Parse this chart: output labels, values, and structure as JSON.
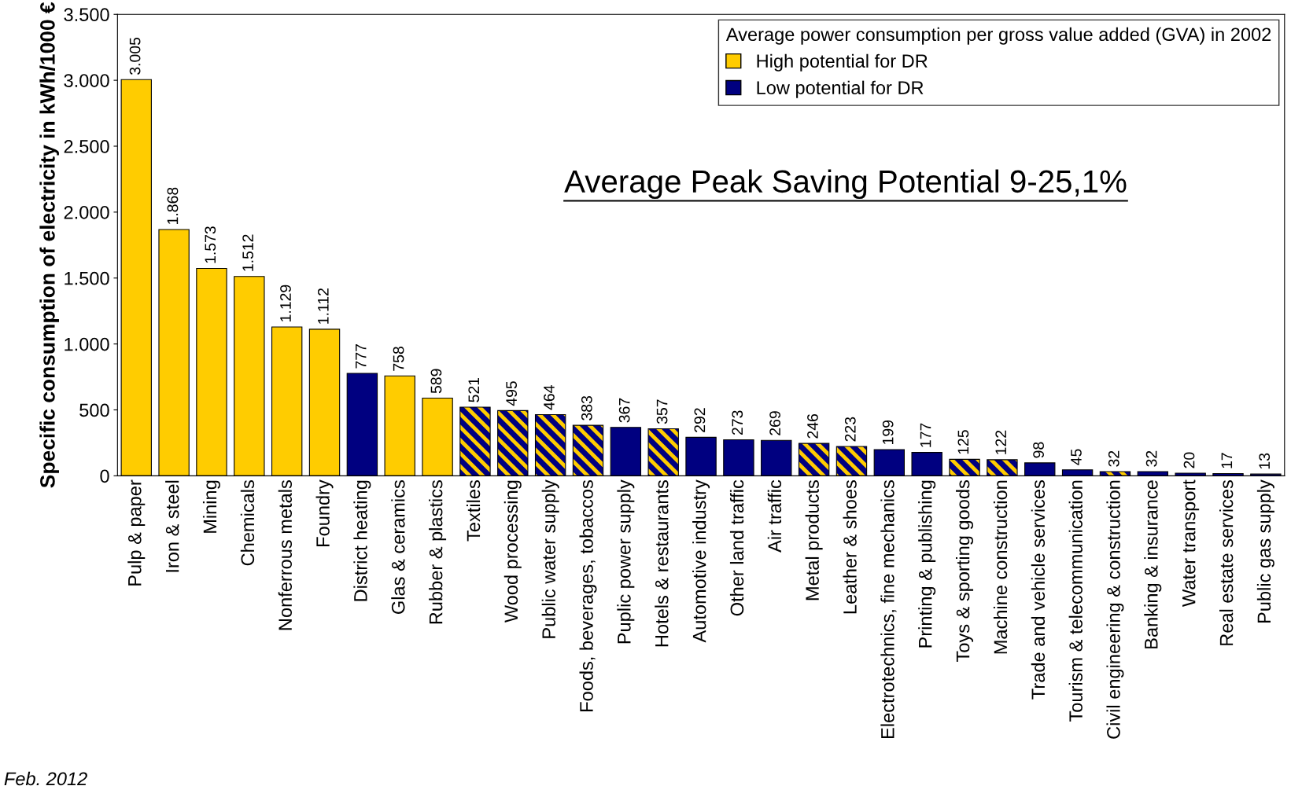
{
  "chart_data": {
    "type": "bar",
    "ylabel": "Specific consumption of electricity in kWh/1000 €",
    "legend_title": "Average power consumption per gross value added (GVA) in 2002",
    "categories": [
      "Pulp & paper",
      "Iron & steel",
      "Mining",
      "Chemicals",
      "Nonferrous metals",
      "Foundry",
      "District heating",
      "Glas & ceramics",
      "Rubber & plastics",
      "Textiles",
      "Wood processing",
      "Public water supply",
      "Foods, beverages, tobaccos",
      "Puplic power supply",
      "Hotels & restaurants",
      "Automotive industry",
      "Other land traffic",
      "Air traffic",
      "Metal products",
      "Leather & shoes",
      "Electrotechnics, fine mechanics",
      "Printing & publishing",
      "Toys & sporting goods",
      "Machine construction",
      "Trade and vehicle services",
      "Tourism & telecommunication",
      "Civil engineering & construction",
      "Banking & insurance",
      "Water transport",
      "Real estate services",
      "Public gas supply"
    ],
    "series": [
      {
        "name": "High potential for DR",
        "color": "#ffcc00",
        "values": [
          3005,
          1868,
          1573,
          1512,
          1129,
          1112,
          null,
          758,
          589,
          null,
          null,
          null,
          null,
          null,
          null,
          null,
          null,
          null,
          null,
          null,
          null,
          null,
          null,
          null,
          null,
          null,
          null,
          null,
          null,
          null,
          null
        ],
        "value_labels": [
          "3.005",
          "1.868",
          "1.573",
          "1.512",
          "1.129",
          "1.112",
          null,
          "758",
          "589",
          null,
          null,
          null,
          null,
          null,
          null,
          null,
          null,
          null,
          null,
          null,
          null,
          null,
          null,
          null,
          null,
          null,
          null,
          null,
          null,
          null,
          null
        ]
      },
      {
        "name": "Low potential for DR",
        "color": "#000080",
        "values": [
          null,
          null,
          null,
          null,
          null,
          null,
          777,
          null,
          null,
          null,
          null,
          null,
          null,
          367,
          null,
          292,
          273,
          269,
          null,
          null,
          199,
          177,
          null,
          null,
          98,
          45,
          null,
          32,
          20,
          17,
          13
        ],
        "value_labels": [
          null,
          null,
          null,
          null,
          null,
          null,
          "777",
          null,
          null,
          null,
          null,
          null,
          null,
          "367",
          null,
          "292",
          "273",
          "269",
          null,
          null,
          "199",
          "177",
          null,
          null,
          "98",
          "45",
          null,
          "32",
          "20",
          "17",
          "13"
        ]
      },
      {
        "color": "#ffcc00",
        "values": [
          null,
          null,
          null,
          null,
          null,
          null,
          null,
          null,
          null,
          521,
          495,
          464,
          383,
          null,
          357,
          null,
          null,
          null,
          246,
          223,
          null,
          null,
          125,
          122,
          null,
          null,
          32,
          null,
          null,
          null,
          null
        ],
        "value_labels": [
          null,
          null,
          null,
          null,
          null,
          null,
          null,
          null,
          null,
          "521",
          "495",
          "464",
          "383",
          null,
          "357",
          null,
          null,
          null,
          "246",
          "223",
          null,
          null,
          "125",
          "122",
          null,
          null,
          "32",
          null,
          null,
          null,
          null
        ]
      }
    ],
    "ylim": [
      0,
      3500
    ],
    "yticks": [
      {
        "value": 0,
        "label": "0"
      },
      {
        "value": 500,
        "label": "500"
      },
      {
        "value": 1000,
        "label": "1.000"
      },
      {
        "value": 1500,
        "label": "1.500"
      },
      {
        "value": 2000,
        "label": "2.000"
      },
      {
        "value": 2500,
        "label": "2.500"
      },
      {
        "value": 3000,
        "label": "3.000"
      },
      {
        "value": 3500,
        "label": "3.500"
      }
    ],
    "grid": false,
    "legend": "top right",
    "annotations": [
      "Average Peak Saving Potential 9-25,1%",
      "Feb. 2012"
    ]
  }
}
